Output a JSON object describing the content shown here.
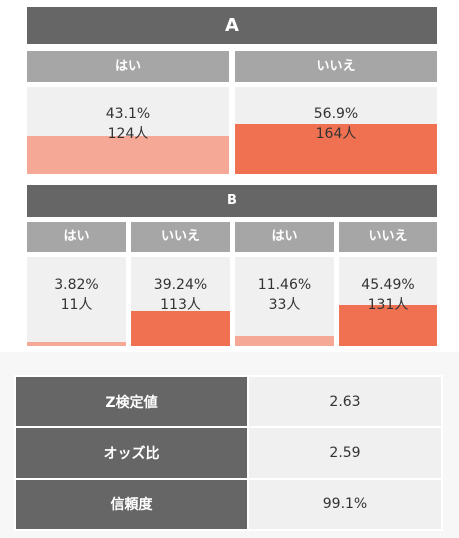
{
  "section_a": {
    "title": "A",
    "columns": [
      {
        "label": "はい",
        "percent": "43.1%",
        "count": "124人",
        "share": 0.431
      },
      {
        "label": "いいえ",
        "percent": "56.9%",
        "count": "164人",
        "share": 0.569
      }
    ]
  },
  "section_b": {
    "title": "B",
    "columns": [
      {
        "label": "はい",
        "percent": "3.82%",
        "count": "11人",
        "share": 0.0382
      },
      {
        "label": "いいえ",
        "percent": "39.24%",
        "count": "113人",
        "share": 0.3924
      },
      {
        "label": "はい",
        "percent": "11.46%",
        "count": "33人",
        "share": 0.1146
      },
      {
        "label": "いいえ",
        "percent": "45.49%",
        "count": "131人",
        "share": 0.4549
      }
    ]
  },
  "stats": [
    {
      "label": "Z検定値",
      "value": "2.63"
    },
    {
      "label": "オッズ比",
      "value": "2.59"
    },
    {
      "label": "信頼度",
      "value": "99.1%"
    }
  ],
  "colors": {
    "header": "#666666",
    "column_header": "#a6a6a6",
    "cell_bg": "#f0f0f0",
    "yes_bar": "#f6a896",
    "no_bar": "#f07151"
  }
}
